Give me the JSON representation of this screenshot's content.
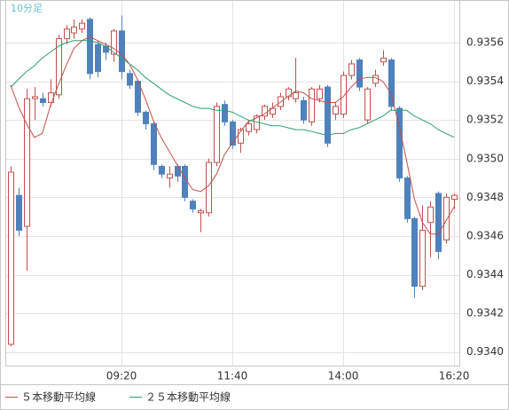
{
  "chart_data": {
    "type": "candlestick",
    "title": "10分足",
    "categories": [
      null,
      null,
      null,
      null,
      null,
      null,
      null,
      null,
      null,
      null,
      null,
      null,
      null,
      null,
      "09:20",
      null,
      null,
      null,
      null,
      null,
      null,
      null,
      null,
      null,
      null,
      null,
      null,
      null,
      "11:40",
      null,
      null,
      null,
      null,
      null,
      null,
      null,
      null,
      null,
      null,
      null,
      null,
      null,
      "14:00",
      null,
      null,
      null,
      null,
      null,
      null,
      null,
      null,
      null,
      null,
      null,
      null,
      null,
      "16:20"
    ],
    "open": [
      0.93404,
      0.93481,
      0.93465,
      0.93531,
      0.93531,
      0.93529,
      0.93533,
      0.93562,
      0.93565,
      0.93567,
      0.93572,
      0.93559,
      0.93558,
      0.93554,
      0.93566,
      0.93544,
      0.9354,
      0.93524,
      0.93518,
      0.93496,
      0.9349,
      0.93496,
      0.93496,
      0.93478,
      0.93472,
      0.93472,
      0.93498,
      0.93528,
      0.93519,
      0.93508,
      0.93514,
      0.93515,
      0.93522,
      0.93523,
      0.93527,
      0.93532,
      0.93531,
      0.9353,
      0.93519,
      0.93531,
      0.93537,
      0.93523,
      0.93523,
      0.93543,
      0.93551,
      0.9352,
      0.93539,
      0.9355,
      0.93551,
      0.93526,
      0.9349,
      0.93469,
      0.93434,
      0.93467,
      0.93482,
      0.93458,
      0.93479
    ],
    "high": [
      0.93496,
      0.93485,
      0.93536,
      0.93537,
      0.93534,
      0.93541,
      0.93564,
      0.93569,
      0.93572,
      0.93572,
      0.93573,
      0.93561,
      0.9356,
      0.93567,
      0.93574,
      0.93546,
      0.93541,
      0.93525,
      0.93519,
      0.93497,
      0.93496,
      0.93497,
      0.93497,
      0.93479,
      0.93474,
      0.935,
      0.93529,
      0.9353,
      0.9352,
      0.93516,
      0.9352,
      0.93523,
      0.93528,
      0.93529,
      0.93534,
      0.93537,
      0.93552,
      0.93532,
      0.93537,
      0.93538,
      0.93538,
      0.93529,
      0.93545,
      0.93551,
      0.93552,
      0.93537,
      0.93546,
      0.93556,
      0.93552,
      0.93527,
      0.93491,
      0.9347,
      0.93476,
      0.93478,
      0.93483,
      0.93482,
      0.93482
    ],
    "low": [
      0.93403,
      0.9346,
      0.93442,
      0.9352,
      0.93527,
      0.93527,
      0.93531,
      0.93559,
      0.93562,
      0.93565,
      0.93541,
      0.93542,
      0.93551,
      0.9355,
      0.93541,
      0.93536,
      0.93522,
      0.93515,
      0.93494,
      0.9349,
      0.93485,
      0.93488,
      0.93478,
      0.93472,
      0.93462,
      0.9347,
      0.93496,
      0.93517,
      0.93505,
      0.93503,
      0.93512,
      0.93513,
      0.9352,
      0.93521,
      0.93525,
      0.9353,
      0.93529,
      0.93518,
      0.93517,
      0.93529,
      0.93506,
      0.9352,
      0.93521,
      0.93541,
      0.93535,
      0.93518,
      0.93537,
      0.93548,
      0.93525,
      0.93488,
      0.93467,
      0.93428,
      0.93432,
      0.93449,
      0.93448,
      0.93456,
      0.93474
    ],
    "close": [
      0.93493,
      0.93463,
      0.93531,
      0.93532,
      0.93529,
      0.93534,
      0.93562,
      0.93567,
      0.93568,
      0.9357,
      0.93544,
      0.93545,
      0.93555,
      0.93566,
      0.93545,
      0.93538,
      0.93524,
      0.93518,
      0.93497,
      0.93492,
      0.93492,
      0.93491,
      0.9348,
      0.93474,
      0.93473,
      0.93498,
      0.93527,
      0.93519,
      0.93507,
      0.93515,
      0.93518,
      0.93522,
      0.93527,
      0.93526,
      0.93532,
      0.93536,
      0.93534,
      0.9352,
      0.93536,
      0.93536,
      0.93508,
      0.93527,
      0.93543,
      0.93549,
      0.93537,
      0.93536,
      0.93543,
      0.93552,
      0.93527,
      0.9349,
      0.93469,
      0.93434,
      0.93463,
      0.93475,
      0.93452,
      0.9348,
      0.93481
    ],
    "up_color": "#c0504d",
    "down_color": "#4f81bd",
    "series": [
      {
        "name": "５本移動平均線",
        "color": "#c0504d",
        "values": [
          0.93538,
          0.93527,
          0.93518,
          0.93511,
          0.93513,
          0.93527,
          0.93538,
          0.93548,
          0.93557,
          0.93561,
          0.93563,
          0.93561,
          0.93559,
          0.93557,
          0.93554,
          0.93549,
          0.93541,
          0.93531,
          0.9352,
          0.93511,
          0.93504,
          0.93497,
          0.9349,
          0.93484,
          0.93483,
          0.93486,
          0.93492,
          0.93502,
          0.93508,
          0.93514,
          0.93519,
          0.93521,
          0.93523,
          0.93526,
          0.93529,
          0.93532,
          0.93535,
          0.93534,
          0.93531,
          0.9353,
          0.93529,
          0.93529,
          0.93532,
          0.93537,
          0.93541,
          0.93542,
          0.93542,
          0.9354,
          0.93534,
          0.93518,
          0.93499,
          0.93479,
          0.93467,
          0.93461,
          0.93461,
          0.93468,
          0.93475
        ]
      },
      {
        "name": "２５本移動平均線",
        "color": "#2e9e6e",
        "values": [
          0.93537,
          0.93541,
          0.93545,
          0.93548,
          0.93552,
          0.93555,
          0.93558,
          0.9356,
          0.93561,
          0.93561,
          0.93561,
          0.9356,
          0.93558,
          0.93555,
          0.93552,
          0.93549,
          0.93546,
          0.93542,
          0.93539,
          0.93536,
          0.93533,
          0.93531,
          0.93529,
          0.93527,
          0.93526,
          0.93526,
          0.93525,
          0.93525,
          0.93524,
          0.93522,
          0.9352,
          0.93519,
          0.93518,
          0.93517,
          0.93517,
          0.93516,
          0.93515,
          0.93515,
          0.93514,
          0.93513,
          0.93512,
          0.93513,
          0.93513,
          0.93515,
          0.93516,
          0.93518,
          0.9352,
          0.93522,
          0.93525,
          0.93525,
          0.93525,
          0.93522,
          0.9352,
          0.93518,
          0.93515,
          0.93513,
          0.93511
        ]
      }
    ],
    "ylim": [
      0.93393,
      0.93582
    ],
    "yticks": [
      {
        "value": 0.934,
        "label": "0.9340"
      },
      0.9342,
      0.9344,
      0.9346,
      0.9348,
      {
        "value": 0.935,
        "label": "0.9350"
      },
      0.9352,
      0.9354,
      0.9356
    ],
    "grid": true
  }
}
